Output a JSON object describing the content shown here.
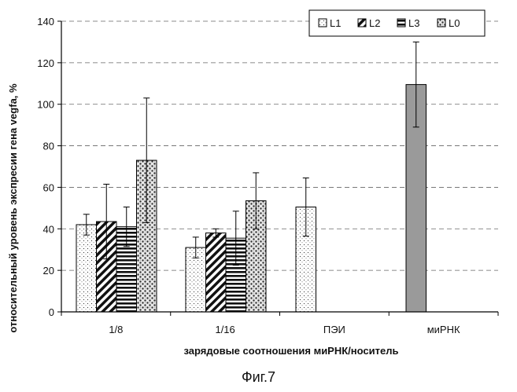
{
  "chart_data": {
    "type": "bar",
    "categories": [
      "1/8",
      "1/16",
      "ПЭИ",
      "миРНК"
    ],
    "xlabel": "зарядовые соотношения миРНК/носитель",
    "ylabel": "относительный уровень экспресии гена vegfa, %",
    "ylim": [
      0,
      140
    ],
    "yticks": [
      0,
      20,
      40,
      60,
      80,
      100,
      120,
      140
    ],
    "grid": "horizontal dashed",
    "legend_position": "top-right",
    "series": [
      {
        "name": "L1",
        "pattern": "dots",
        "values": [
          42,
          31,
          50.5,
          null
        ],
        "errors": [
          5,
          5,
          14,
          null
        ]
      },
      {
        "name": "L2",
        "pattern": "diagonal",
        "values": [
          43.5,
          38,
          null,
          null
        ],
        "errors": [
          18,
          2,
          null,
          null
        ]
      },
      {
        "name": "L3",
        "pattern": "horizontal",
        "values": [
          41,
          35.5,
          null,
          null
        ],
        "errors": [
          9.5,
          13,
          null,
          null
        ]
      },
      {
        "name": "L0",
        "pattern": "speckle",
        "values": [
          73,
          53.5,
          null,
          null
        ],
        "errors": [
          30,
          13.5,
          null,
          null
        ]
      },
      {
        "name": "",
        "pattern": "gray",
        "values": [
          null,
          null,
          null,
          109.5
        ],
        "errors": [
          null,
          null,
          null,
          20.5
        ]
      }
    ]
  },
  "caption": "Фиг.7"
}
